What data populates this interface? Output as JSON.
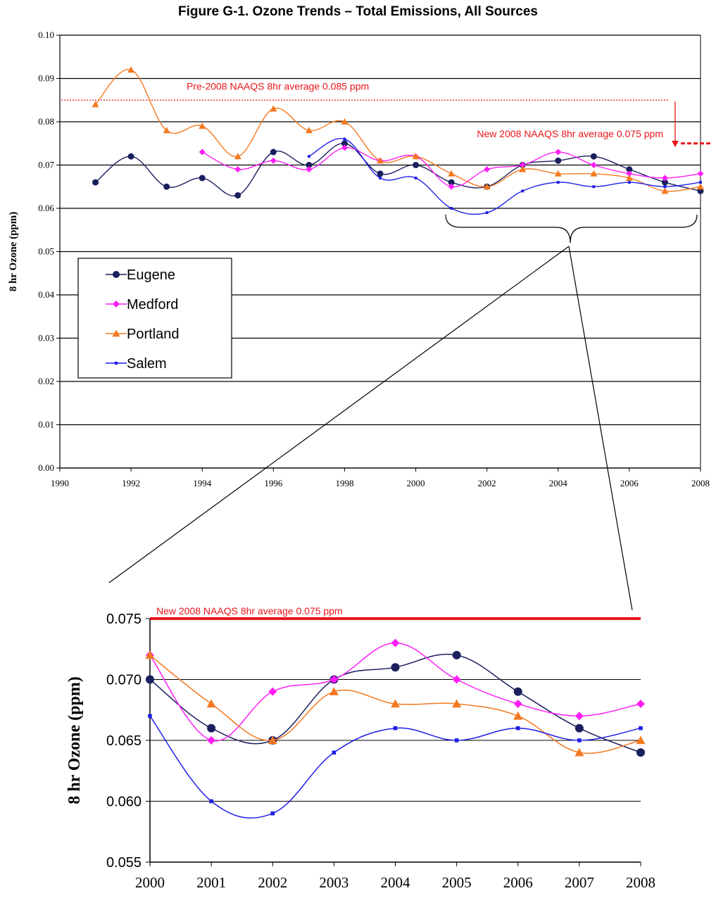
{
  "figure_title": "Figure G-1.  Ozone Trends – Total Emissions, All Sources",
  "series_colors": {
    "Eugene": "#1a1f5e",
    "Medford": "#ff1ef8",
    "Portland": "#f47920",
    "Salem": "#1f1fe8"
  },
  "reference_color": "#e8161b",
  "chart_data": [
    {
      "type": "line",
      "title": "",
      "xlabel": "",
      "ylabel": "8 hr Ozone (ppm)",
      "xlim": [
        1990,
        2008
      ],
      "ylim": [
        0.0,
        0.1
      ],
      "x_ticks": [
        "1990",
        "1992",
        "1994",
        "1996",
        "1998",
        "2000",
        "2002",
        "2004",
        "2006",
        "2008"
      ],
      "y_ticks": [
        "0.00",
        "0.01",
        "0.02",
        "0.03",
        "0.04",
        "0.05",
        "0.06",
        "0.07",
        "0.08",
        "0.09",
        "0.10"
      ],
      "grid": true,
      "legend": "left",
      "series": [
        {
          "name": "Eugene",
          "marker": "circle",
          "points": [
            [
              1991,
              0.066
            ],
            [
              1992,
              0.072
            ],
            [
              1993,
              0.065
            ],
            [
              1994,
              0.067
            ],
            [
              1995,
              0.063
            ],
            [
              1996,
              0.073
            ],
            [
              1997,
              0.07
            ],
            [
              1998,
              0.075
            ],
            [
              1999,
              0.068
            ],
            [
              2000,
              0.07
            ],
            [
              2001,
              0.066
            ],
            [
              2002,
              0.065
            ],
            [
              2003,
              0.07
            ],
            [
              2004,
              0.071
            ],
            [
              2005,
              0.072
            ],
            [
              2006,
              0.069
            ],
            [
              2007,
              0.066
            ],
            [
              2008,
              0.064
            ]
          ]
        },
        {
          "name": "Medford",
          "marker": "diamond",
          "points": [
            [
              1994,
              0.073
            ],
            [
              1995,
              0.069
            ],
            [
              1996,
              0.071
            ],
            [
              1997,
              0.069
            ],
            [
              1998,
              0.074
            ],
            [
              1999,
              0.071
            ],
            [
              2000,
              0.072
            ],
            [
              2001,
              0.065
            ],
            [
              2002,
              0.069
            ],
            [
              2003,
              0.07
            ],
            [
              2004,
              0.073
            ],
            [
              2005,
              0.07
            ],
            [
              2006,
              0.068
            ],
            [
              2007,
              0.067
            ],
            [
              2008,
              0.068
            ]
          ]
        },
        {
          "name": "Portland",
          "marker": "triangle",
          "points": [
            [
              1991,
              0.084
            ],
            [
              1992,
              0.092
            ],
            [
              1993,
              0.078
            ],
            [
              1994,
              0.079
            ],
            [
              1995,
              0.072
            ],
            [
              1996,
              0.083
            ],
            [
              1997,
              0.078
            ],
            [
              1998,
              0.08
            ],
            [
              1999,
              0.071
            ],
            [
              2000,
              0.072
            ],
            [
              2001,
              0.068
            ],
            [
              2002,
              0.065
            ],
            [
              2003,
              0.069
            ],
            [
              2004,
              0.068
            ],
            [
              2005,
              0.068
            ],
            [
              2006,
              0.067
            ],
            [
              2007,
              0.064
            ],
            [
              2008,
              0.065
            ]
          ]
        },
        {
          "name": "Salem",
          "marker": "square",
          "points": [
            [
              1997,
              0.072
            ],
            [
              1998,
              0.076
            ],
            [
              1999,
              0.067
            ],
            [
              2000,
              0.067
            ],
            [
              2001,
              0.06
            ],
            [
              2002,
              0.059
            ],
            [
              2003,
              0.064
            ],
            [
              2004,
              0.066
            ],
            [
              2005,
              0.065
            ],
            [
              2006,
              0.066
            ],
            [
              2007,
              0.065
            ],
            [
              2008,
              0.066
            ]
          ]
        }
      ],
      "reference_lines": [
        {
          "label": "Pre-2008 NAAQS 8hr average 0.085 ppm",
          "value": 0.085
        },
        {
          "label": "New 2008 NAAQS 8hr average 0.075 ppm",
          "value": 0.075
        }
      ]
    },
    {
      "type": "line",
      "title": "",
      "xlabel": "",
      "ylabel": "8 hr Ozone (ppm)",
      "xlim": [
        2000,
        2008
      ],
      "ylim": [
        0.055,
        0.075
      ],
      "x_ticks": [
        "2000",
        "2001",
        "2002",
        "2003",
        "2004",
        "2005",
        "2006",
        "2007",
        "2008"
      ],
      "y_ticks": [
        "0.055",
        "0.060",
        "0.065",
        "0.070",
        "0.075"
      ],
      "grid": true,
      "legend": "none",
      "series": [
        {
          "name": "Eugene",
          "marker": "circle",
          "points": [
            [
              2000,
              0.07
            ],
            [
              2001,
              0.066
            ],
            [
              2002,
              0.065
            ],
            [
              2003,
              0.07
            ],
            [
              2004,
              0.071
            ],
            [
              2005,
              0.072
            ],
            [
              2006,
              0.069
            ],
            [
              2007,
              0.066
            ],
            [
              2008,
              0.064
            ]
          ]
        },
        {
          "name": "Medford",
          "marker": "diamond",
          "points": [
            [
              2000,
              0.072
            ],
            [
              2001,
              0.065
            ],
            [
              2002,
              0.069
            ],
            [
              2003,
              0.07
            ],
            [
              2004,
              0.073
            ],
            [
              2005,
              0.07
            ],
            [
              2006,
              0.068
            ],
            [
              2007,
              0.067
            ],
            [
              2008,
              0.068
            ]
          ]
        },
        {
          "name": "Portland",
          "marker": "triangle",
          "points": [
            [
              2000,
              0.072
            ],
            [
              2001,
              0.068
            ],
            [
              2002,
              0.065
            ],
            [
              2003,
              0.069
            ],
            [
              2004,
              0.068
            ],
            [
              2005,
              0.068
            ],
            [
              2006,
              0.067
            ],
            [
              2007,
              0.064
            ],
            [
              2008,
              0.065
            ]
          ]
        },
        {
          "name": "Salem",
          "marker": "square",
          "points": [
            [
              2000,
              0.067
            ],
            [
              2001,
              0.06
            ],
            [
              2002,
              0.059
            ],
            [
              2003,
              0.064
            ],
            [
              2004,
              0.066
            ],
            [
              2005,
              0.065
            ],
            [
              2006,
              0.066
            ],
            [
              2007,
              0.065
            ],
            [
              2008,
              0.066
            ]
          ]
        }
      ],
      "reference_lines": [
        {
          "label": "New 2008 NAAQS 8hr average 0.075 ppm",
          "value": 0.075
        }
      ]
    }
  ]
}
